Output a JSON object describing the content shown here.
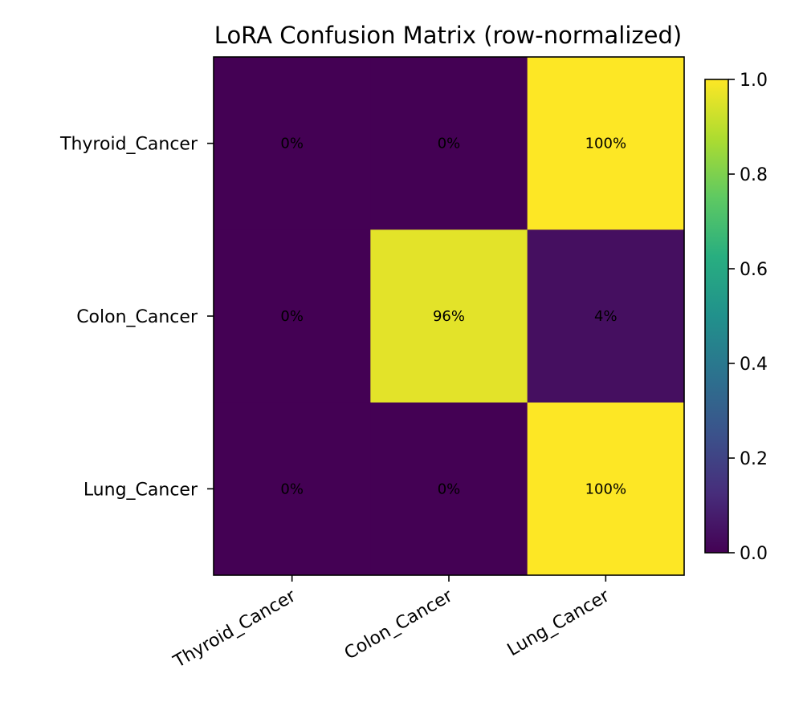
{
  "chart_data": {
    "type": "heatmap",
    "title": "LoRA Confusion Matrix (row-normalized)",
    "xlabel": "",
    "ylabel": "",
    "rows": [
      "Thyroid_Cancer",
      "Colon_Cancer",
      "Lung_Cancer"
    ],
    "columns": [
      "Thyroid_Cancer",
      "Colon_Cancer",
      "Lung_Cancer"
    ],
    "values": [
      [
        0.0,
        0.0,
        1.0
      ],
      [
        0.0,
        0.96,
        0.04
      ],
      [
        0.0,
        0.0,
        1.0
      ]
    ],
    "cell_labels": [
      [
        "0%",
        "0%",
        "100%"
      ],
      [
        "0%",
        "96%",
        "4%"
      ],
      [
        "0%",
        "0%",
        "100%"
      ]
    ],
    "colormap": "viridis",
    "colorbar": {
      "range": [
        0.0,
        1.0
      ],
      "ticks": [
        0.0,
        0.2,
        0.4,
        0.6,
        0.8,
        1.0
      ],
      "tick_labels": [
        "0.0",
        "0.2",
        "0.4",
        "0.6",
        "0.8",
        "1.0"
      ]
    },
    "grid": false,
    "legend": "colorbar-right"
  }
}
